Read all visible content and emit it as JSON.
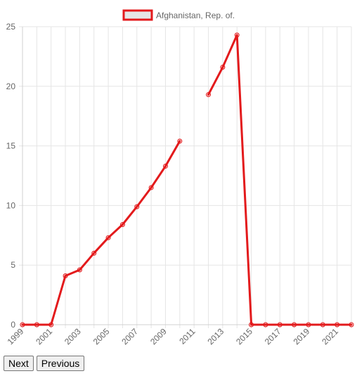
{
  "chart_data": {
    "type": "line",
    "title": "",
    "xlabel": "",
    "ylabel": "",
    "x": [
      1999,
      2000,
      2001,
      2002,
      2003,
      2004,
      2005,
      2006,
      2007,
      2008,
      2009,
      2010,
      2011,
      2012,
      2013,
      2014,
      2015,
      2016,
      2017,
      2018,
      2019,
      2020,
      2021,
      2022
    ],
    "x_tick_labels": [
      "1999",
      "2001",
      "2003",
      "2005",
      "2007",
      "2009",
      "2011",
      "2013",
      "2015",
      "2017",
      "2019",
      "2021"
    ],
    "y_ticks": [
      0,
      5,
      10,
      15,
      20,
      25
    ],
    "ylim": [
      0,
      25
    ],
    "grid": true,
    "legend_position": "top",
    "series": [
      {
        "name": "Afghanistan, Rep. of.",
        "color": "#e31a1c",
        "values": [
          0,
          0,
          0,
          4.1,
          4.6,
          6.0,
          7.3,
          8.4,
          9.9,
          11.5,
          13.3,
          15.4,
          null,
          19.3,
          21.6,
          24.3,
          0,
          0,
          0,
          0,
          0,
          0,
          0,
          0
        ]
      }
    ]
  },
  "nav": {
    "next_label": "Next",
    "previous_label": "Previous"
  }
}
